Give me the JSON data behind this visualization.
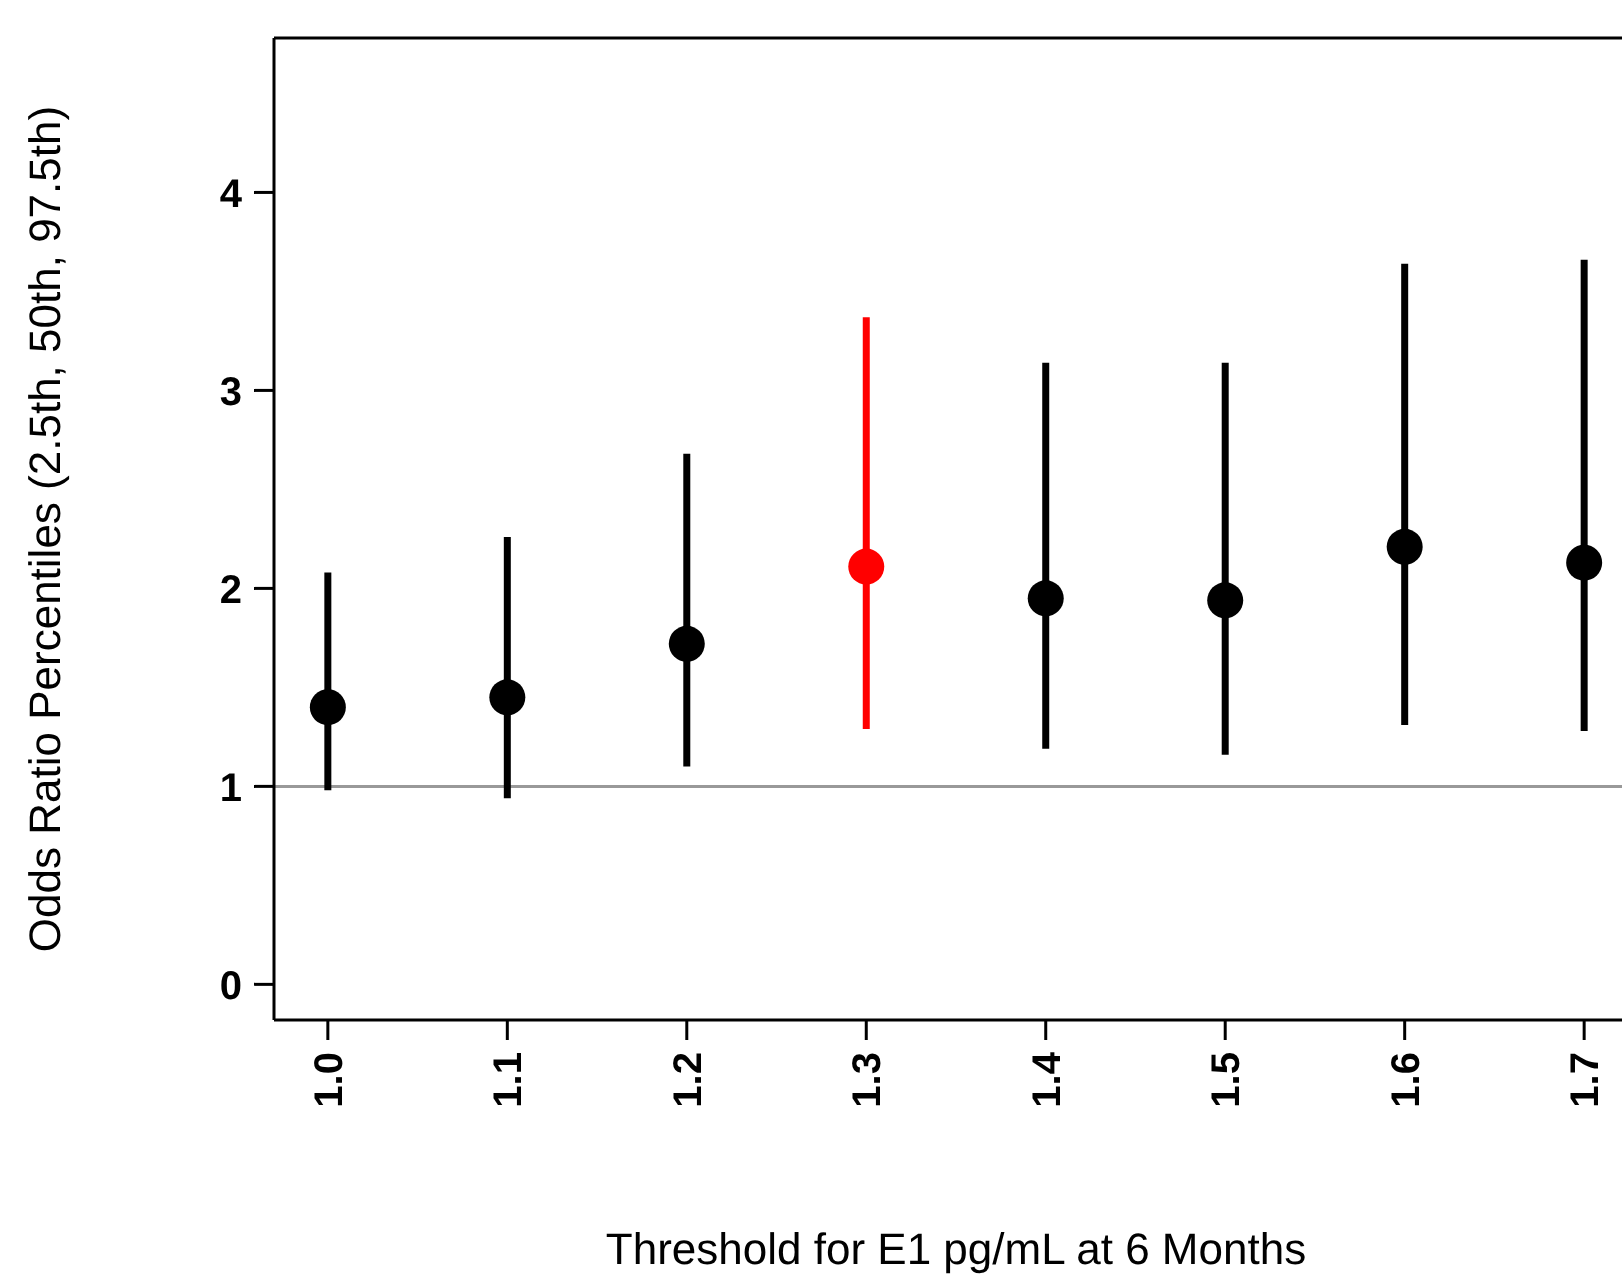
{
  "chart_data": {
    "type": "scatter",
    "xlabel": "Threshold for E1 pg/mL at 6 Months",
    "ylabel": "Odds Ratio Percentiles (2.5th, 50th, 97.5th)",
    "categories": [
      "1.0",
      "1.1",
      "1.2",
      "1.3",
      "1.4",
      "1.5",
      "1.6",
      "1.7"
    ],
    "values": [
      1.4,
      1.45,
      1.72,
      2.11,
      1.95,
      1.94,
      2.21,
      2.13
    ],
    "errors": [
      [
        0.98,
        2.08
      ],
      [
        0.94,
        2.26
      ],
      [
        1.1,
        2.68
      ],
      [
        1.29,
        3.37
      ],
      [
        1.19,
        3.14
      ],
      [
        1.16,
        3.14
      ],
      [
        1.31,
        3.64
      ],
      [
        1.28,
        3.66
      ]
    ],
    "colors": [
      "#000000",
      "#000000",
      "#000000",
      "#ff0000",
      "#000000",
      "#000000",
      "#000000",
      "#000000"
    ],
    "ylim": [
      -0.18,
      4.78
    ],
    "yticks": [
      0,
      1,
      2,
      3,
      4
    ],
    "ref_lines": [
      {
        "axis": "y",
        "value": 1,
        "color": "#999999"
      }
    ],
    "legend": false,
    "marker": "circle"
  }
}
